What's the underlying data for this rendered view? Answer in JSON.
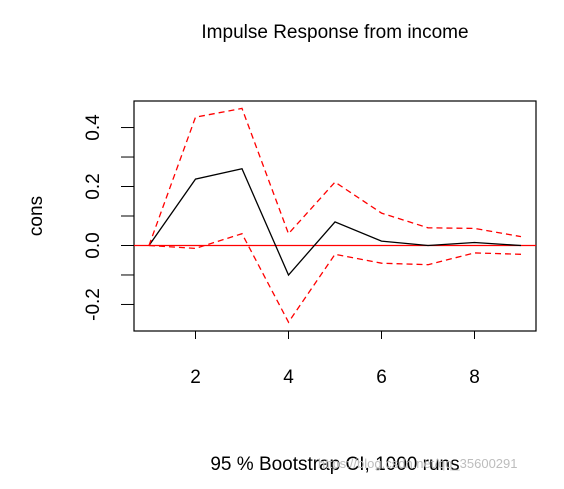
{
  "chart_data": {
    "type": "line",
    "title": "Impulse Response from income",
    "xlabel": "95 % Bootstrap CI,  1000 runs",
    "ylabel": "cons",
    "xlim": [
      1,
      9
    ],
    "ylim": [
      -0.29,
      0.49
    ],
    "x": [
      1,
      2,
      3,
      4,
      5,
      6,
      7,
      8,
      9
    ],
    "x_ticks": [
      2,
      4,
      6,
      8
    ],
    "x_tick_labels": [
      "2",
      "4",
      "6",
      "8"
    ],
    "y_ticks": [
      -0.2,
      0.0,
      0.2,
      0.4
    ],
    "y_tick_labels": [
      "-0.2",
      "0.0",
      "0.2",
      "0.4"
    ],
    "y_minor_ticks": [
      -0.3,
      -0.2,
      -0.1,
      0.0,
      0.1,
      0.2,
      0.3,
      0.4
    ],
    "grid": false,
    "zero_line": {
      "value": 0,
      "color": "#ff0000"
    },
    "series": [
      {
        "role": "estimate",
        "values": [
          0.0,
          0.225,
          0.26,
          -0.1,
          0.08,
          0.015,
          0.0,
          0.01,
          0.0
        ],
        "color": "#000000",
        "dash": "solid"
      },
      {
        "role": "upper-ci",
        "values": [
          0.0,
          0.435,
          0.465,
          0.04,
          0.215,
          0.11,
          0.06,
          0.058,
          0.03
        ],
        "color": "#ff0000",
        "dash": "dashed"
      },
      {
        "role": "lower-ci",
        "values": [
          0.0,
          -0.01,
          0.04,
          -0.26,
          -0.03,
          -0.06,
          -0.065,
          -0.025,
          -0.03
        ],
        "color": "#ff0000",
        "dash": "dashed"
      }
    ]
  },
  "watermark": "https://blog.csdn.net/qq_35600291"
}
